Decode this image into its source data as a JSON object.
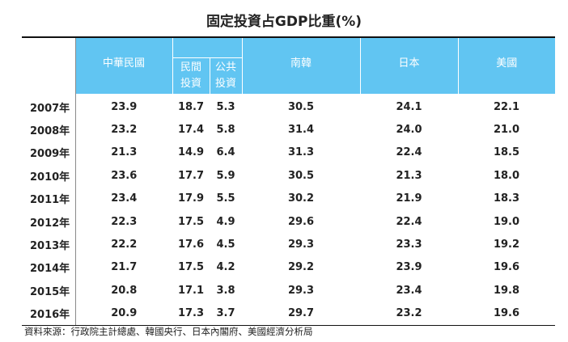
{
  "title": "固定投資占GDP比重(%)",
  "header": {
    "col_taiwan": "中華民國",
    "col_private": [
      "民間",
      "投資"
    ],
    "col_public": [
      "公共",
      "投資"
    ],
    "col_korea": "南韓",
    "col_japan": "日本",
    "col_us": "美國"
  },
  "rows": [
    {
      "year": "2007年",
      "taiwan": "23.9",
      "private": "18.7",
      "public": "5.3",
      "korea": "30.5",
      "japan": "24.1",
      "us": "22.1"
    },
    {
      "year": "2008年",
      "taiwan": "23.2",
      "private": "17.4",
      "public": "5.8",
      "korea": "31.4",
      "japan": "24.0",
      "us": "21.0"
    },
    {
      "year": "2009年",
      "taiwan": "21.3",
      "private": "14.9",
      "public": "6.4",
      "korea": "31.3",
      "japan": "22.4",
      "us": "18.5"
    },
    {
      "year": "2010年",
      "taiwan": "23.6",
      "private": "17.7",
      "public": "5.9",
      "korea": "30.5",
      "japan": "21.3",
      "us": "18.0"
    },
    {
      "year": "2011年",
      "taiwan": "23.4",
      "private": "17.9",
      "public": "5.5",
      "korea": "30.2",
      "japan": "21.9",
      "us": "18.3"
    },
    {
      "year": "2012年",
      "taiwan": "22.3",
      "private": "17.5",
      "public": "4.9",
      "korea": "29.6",
      "japan": "22.4",
      "us": "19.0"
    },
    {
      "year": "2013年",
      "taiwan": "22.2",
      "private": "17.6",
      "public": "4.5",
      "korea": "29.3",
      "japan": "23.3",
      "us": "19.2"
    },
    {
      "year": "2014年",
      "taiwan": "21.7",
      "private": "17.5",
      "public": "4.2",
      "korea": "29.2",
      "japan": "23.9",
      "us": "19.6"
    },
    {
      "year": "2015年",
      "taiwan": "20.8",
      "private": "17.1",
      "public": "3.8",
      "korea": "29.3",
      "japan": "23.4",
      "us": "19.8"
    },
    {
      "year": "2016年",
      "taiwan": "20.9",
      "private": "17.3",
      "public": "3.7",
      "korea": "29.7",
      "japan": "23.2",
      "us": "19.6"
    }
  ],
  "source": "資料來源：行政院主計總處、韓國央行、日本內閣府、美國經濟分析局",
  "colors": {
    "header_bg": "#61c5f2",
    "header_text": "#ffffff"
  }
}
